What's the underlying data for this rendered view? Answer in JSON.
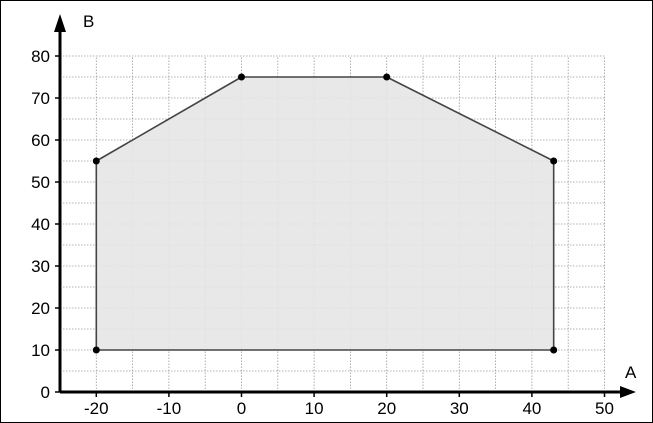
{
  "chart_data": {
    "type": "area",
    "title": "",
    "xlabel": "A",
    "ylabel": "B",
    "xlim": [
      -25,
      50
    ],
    "ylim": [
      0,
      80
    ],
    "x_ticks": [
      -20,
      -10,
      0,
      10,
      20,
      30,
      40,
      50
    ],
    "y_ticks": [
      0,
      10,
      20,
      30,
      40,
      50,
      60,
      70,
      80
    ],
    "x_tick_labels": [
      "-20",
      "-10",
      "0",
      "10",
      "20",
      "30",
      "40",
      "50"
    ],
    "y_tick_labels": [
      "0",
      "10",
      "20",
      "30",
      "40",
      "50",
      "60",
      "70",
      "80"
    ],
    "grid": true,
    "minor_grid_step": 5,
    "series": [
      {
        "points": [
          {
            "x": -20,
            "y": 10
          },
          {
            "x": -20,
            "y": 55
          },
          {
            "x": 0,
            "y": 75
          },
          {
            "x": 20,
            "y": 75
          },
          {
            "x": 43,
            "y": 55
          },
          {
            "x": 43,
            "y": 10
          }
        ]
      }
    ],
    "colors": {
      "fill": "#e6e6e6",
      "line": "#444444",
      "grid": "#9a9a9a",
      "axis": "#000000",
      "marker": "#000000"
    }
  }
}
